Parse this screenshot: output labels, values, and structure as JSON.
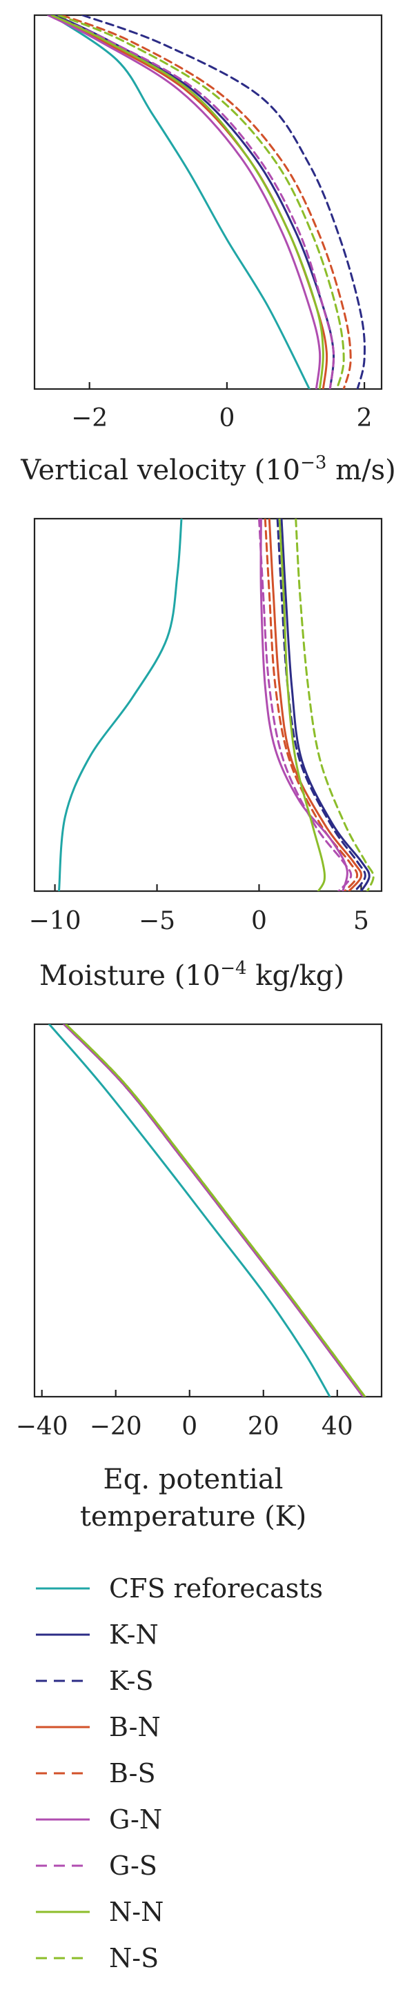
{
  "colors": {
    "CFS": "#20a6a6",
    "KN": "#2c2c86",
    "KS": "#2c2c86",
    "BN": "#d2512a",
    "BS": "#d2512a",
    "GN": "#b04db0",
    "GS": "#b04db0",
    "NN": "#8cbd2a",
    "NS": "#8cbd2a"
  },
  "chart_data": [
    {
      "type": "line",
      "title": "",
      "xlabel": "Vertical velocity (10",
      "xlabel_exp": "−3",
      "xlabel_unit": " m/s)",
      "xlim": [
        -2.8,
        2.25
      ],
      "ylim": [
        0,
        1
      ],
      "xticks": [
        -2,
        0,
        2
      ],
      "xtick_labels": [
        "−2",
        "0",
        "2"
      ],
      "series": [
        {
          "name": "CFS reforecasts",
          "key": "CFS",
          "dash": false,
          "points": [
            [
              -2.55,
              1.0
            ],
            [
              -1.6,
              0.88
            ],
            [
              -1.1,
              0.74
            ],
            [
              -0.55,
              0.58
            ],
            [
              0.0,
              0.4
            ],
            [
              0.6,
              0.22
            ],
            [
              1.2,
              0.0
            ]
          ]
        },
        {
          "name": "K-N",
          "key": "KN",
          "dash": false,
          "points": [
            [
              -2.5,
              1.0
            ],
            [
              -1.7,
              0.93
            ],
            [
              -0.5,
              0.8
            ],
            [
              0.4,
              0.62
            ],
            [
              1.0,
              0.42
            ],
            [
              1.4,
              0.22
            ],
            [
              1.55,
              0.1
            ],
            [
              1.5,
              0.0
            ]
          ]
        },
        {
          "name": "K-S",
          "key": "KS",
          "dash": true,
          "points": [
            [
              -2.1,
              1.0
            ],
            [
              -0.9,
              0.92
            ],
            [
              0.5,
              0.78
            ],
            [
              1.2,
              0.6
            ],
            [
              1.65,
              0.4
            ],
            [
              1.95,
              0.2
            ],
            [
              2.0,
              0.08
            ],
            [
              1.9,
              0.0
            ]
          ]
        },
        {
          "name": "B-N",
          "key": "BN",
          "dash": false,
          "points": [
            [
              -2.55,
              1.0
            ],
            [
              -1.8,
              0.93
            ],
            [
              -0.6,
              0.8
            ],
            [
              0.3,
              0.62
            ],
            [
              0.9,
              0.42
            ],
            [
              1.3,
              0.22
            ],
            [
              1.45,
              0.1
            ],
            [
              1.4,
              0.0
            ]
          ]
        },
        {
          "name": "B-S",
          "key": "BS",
          "dash": true,
          "points": [
            [
              -2.4,
              1.0
            ],
            [
              -1.4,
              0.93
            ],
            [
              -0.1,
              0.79
            ],
            [
              0.8,
              0.61
            ],
            [
              1.35,
              0.41
            ],
            [
              1.7,
              0.21
            ],
            [
              1.8,
              0.08
            ],
            [
              1.7,
              0.0
            ]
          ]
        },
        {
          "name": "G-N",
          "key": "GN",
          "dash": false,
          "points": [
            [
              -2.6,
              1.0
            ],
            [
              -1.85,
              0.93
            ],
            [
              -0.7,
              0.8
            ],
            [
              0.2,
              0.62
            ],
            [
              0.8,
              0.42
            ],
            [
              1.2,
              0.22
            ],
            [
              1.35,
              0.1
            ],
            [
              1.3,
              0.0
            ]
          ]
        },
        {
          "name": "G-S",
          "key": "GS",
          "dash": true,
          "points": [
            [
              -2.55,
              1.0
            ],
            [
              -1.7,
              0.93
            ],
            [
              -0.45,
              0.8
            ],
            [
              0.45,
              0.62
            ],
            [
              1.05,
              0.42
            ],
            [
              1.4,
              0.22
            ],
            [
              1.55,
              0.1
            ],
            [
              1.5,
              0.0
            ]
          ]
        },
        {
          "name": "N-N",
          "key": "NN",
          "dash": false,
          "points": [
            [
              -2.55,
              1.0
            ],
            [
              -1.75,
              0.93
            ],
            [
              -0.55,
              0.8
            ],
            [
              0.3,
              0.62
            ],
            [
              0.9,
              0.42
            ],
            [
              1.3,
              0.22
            ],
            [
              1.4,
              0.1
            ],
            [
              1.35,
              0.0
            ]
          ]
        },
        {
          "name": "N-S",
          "key": "NS",
          "dash": true,
          "points": [
            [
              -2.45,
              1.0
            ],
            [
              -1.5,
              0.93
            ],
            [
              -0.2,
              0.79
            ],
            [
              0.7,
              0.61
            ],
            [
              1.25,
              0.41
            ],
            [
              1.6,
              0.21
            ],
            [
              1.7,
              0.08
            ],
            [
              1.6,
              0.0
            ]
          ]
        }
      ]
    },
    {
      "type": "line",
      "title": "",
      "xlabel": "Moisture (10",
      "xlabel_exp": "−4",
      "xlabel_unit": " kg/kg)",
      "xlim": [
        -11,
        6
      ],
      "ylim": [
        0,
        1
      ],
      "xticks": [
        -10,
        -5,
        0,
        5
      ],
      "xtick_labels": [
        "−10",
        "−5",
        "0",
        "5"
      ],
      "series": [
        {
          "name": "CFS reforecasts",
          "key": "CFS",
          "dash": false,
          "points": [
            [
              -3.8,
              1.0
            ],
            [
              -4.0,
              0.85
            ],
            [
              -4.5,
              0.68
            ],
            [
              -6.2,
              0.52
            ],
            [
              -8.3,
              0.36
            ],
            [
              -9.5,
              0.2
            ],
            [
              -9.8,
              0.0
            ]
          ]
        },
        {
          "name": "K-N",
          "key": "KN",
          "dash": false,
          "points": [
            [
              1.1,
              1.0
            ],
            [
              1.3,
              0.8
            ],
            [
              1.6,
              0.55
            ],
            [
              2.1,
              0.35
            ],
            [
              3.6,
              0.18
            ],
            [
              5.0,
              0.08
            ],
            [
              5.4,
              0.04
            ],
            [
              5.0,
              0.0
            ]
          ]
        },
        {
          "name": "K-S",
          "key": "KS",
          "dash": true,
          "points": [
            [
              0.9,
              1.0
            ],
            [
              1.1,
              0.8
            ],
            [
              1.4,
              0.55
            ],
            [
              2.0,
              0.35
            ],
            [
              3.5,
              0.18
            ],
            [
              4.8,
              0.08
            ],
            [
              5.2,
              0.04
            ],
            [
              4.7,
              0.0
            ]
          ]
        },
        {
          "name": "B-N",
          "key": "BN",
          "dash": false,
          "points": [
            [
              0.5,
              1.0
            ],
            [
              0.7,
              0.8
            ],
            [
              1.0,
              0.55
            ],
            [
              1.6,
              0.35
            ],
            [
              3.2,
              0.18
            ],
            [
              4.6,
              0.08
            ],
            [
              5.0,
              0.04
            ],
            [
              4.4,
              0.0
            ]
          ]
        },
        {
          "name": "B-S",
          "key": "BS",
          "dash": true,
          "points": [
            [
              0.3,
              1.0
            ],
            [
              0.5,
              0.8
            ],
            [
              0.8,
              0.55
            ],
            [
              1.5,
              0.35
            ],
            [
              3.0,
              0.18
            ],
            [
              4.4,
              0.08
            ],
            [
              4.8,
              0.04
            ],
            [
              4.2,
              0.0
            ]
          ]
        },
        {
          "name": "G-N",
          "key": "GN",
          "dash": false,
          "points": [
            [
              0.1,
              1.0
            ],
            [
              0.1,
              0.8
            ],
            [
              0.3,
              0.55
            ],
            [
              0.8,
              0.38
            ],
            [
              2.0,
              0.24
            ],
            [
              3.5,
              0.14
            ],
            [
              4.3,
              0.06
            ],
            [
              4.1,
              0.0
            ]
          ]
        },
        {
          "name": "G-S",
          "key": "GS",
          "dash": true,
          "points": [
            [
              0.0,
              1.0
            ],
            [
              0.2,
              0.8
            ],
            [
              0.5,
              0.55
            ],
            [
              1.2,
              0.35
            ],
            [
              2.7,
              0.18
            ],
            [
              4.1,
              0.08
            ],
            [
              4.5,
              0.04
            ],
            [
              3.9,
              0.0
            ]
          ]
        },
        {
          "name": "N-N",
          "key": "NN",
          "dash": false,
          "points": [
            [
              1.0,
              1.0
            ],
            [
              1.2,
              0.8
            ],
            [
              1.4,
              0.55
            ],
            [
              1.8,
              0.35
            ],
            [
              2.6,
              0.18
            ],
            [
              3.1,
              0.08
            ],
            [
              3.2,
              0.03
            ],
            [
              2.9,
              0.0
            ]
          ]
        },
        {
          "name": "N-S",
          "key": "NS",
          "dash": true,
          "points": [
            [
              1.8,
              1.0
            ],
            [
              2.0,
              0.8
            ],
            [
              2.4,
              0.55
            ],
            [
              3.0,
              0.35
            ],
            [
              4.2,
              0.18
            ],
            [
              5.2,
              0.08
            ],
            [
              5.6,
              0.04
            ],
            [
              5.3,
              0.0
            ]
          ]
        }
      ]
    },
    {
      "type": "line",
      "title": "",
      "xlabel": "Eq. potential",
      "xlabel2": "temperature (K)",
      "xlim": [
        -42,
        52
      ],
      "ylim": [
        0,
        1
      ],
      "xticks": [
        -40,
        -20,
        0,
        20,
        40
      ],
      "xtick_labels": [
        "−40",
        "−20",
        "0",
        "20",
        "40"
      ],
      "series": [
        {
          "name": "CFS reforecasts",
          "key": "CFS",
          "dash": false,
          "points": [
            [
              -38,
              1.0
            ],
            [
              -24,
              0.84
            ],
            [
              -8,
              0.64
            ],
            [
              6,
              0.46
            ],
            [
              20,
              0.28
            ],
            [
              31,
              0.12
            ],
            [
              38,
              0.0
            ]
          ]
        },
        {
          "name": "K-N",
          "key": "KN",
          "dash": false,
          "points": [
            [
              -34,
              1.0
            ],
            [
              -18,
              0.84
            ],
            [
              -2,
              0.64
            ],
            [
              12,
              0.46
            ],
            [
              26,
              0.28
            ],
            [
              38,
              0.12
            ],
            [
              47,
              0.0
            ]
          ]
        },
        {
          "name": "K-S",
          "key": "KS",
          "dash": true,
          "points": [
            [
              -34,
              1.0
            ],
            [
              -18,
              0.84
            ],
            [
              -2,
              0.64
            ],
            [
              12,
              0.46
            ],
            [
              26,
              0.28
            ],
            [
              38,
              0.12
            ],
            [
              47,
              0.0
            ]
          ]
        },
        {
          "name": "B-N",
          "key": "BN",
          "dash": false,
          "points": [
            [
              -34,
              1.0
            ],
            [
              -18,
              0.84
            ],
            [
              -2,
              0.64
            ],
            [
              12,
              0.46
            ],
            [
              26,
              0.28
            ],
            [
              38,
              0.12
            ],
            [
              47,
              0.0
            ]
          ]
        },
        {
          "name": "B-S",
          "key": "BS",
          "dash": true,
          "points": [
            [
              -34,
              1.0
            ],
            [
              -18,
              0.84
            ],
            [
              -2,
              0.64
            ],
            [
              12,
              0.46
            ],
            [
              26,
              0.28
            ],
            [
              38,
              0.12
            ],
            [
              47,
              0.0
            ]
          ]
        },
        {
          "name": "G-N",
          "key": "GN",
          "dash": false,
          "points": [
            [
              -34,
              1.0
            ],
            [
              -18,
              0.84
            ],
            [
              -2,
              0.64
            ],
            [
              12,
              0.46
            ],
            [
              26,
              0.28
            ],
            [
              38,
              0.12
            ],
            [
              47,
              0.0
            ]
          ]
        },
        {
          "name": "G-S",
          "key": "GS",
          "dash": true,
          "points": [
            [
              -34,
              1.0
            ],
            [
              -18,
              0.84
            ],
            [
              -2,
              0.64
            ],
            [
              12,
              0.46
            ],
            [
              26,
              0.28
            ],
            [
              38,
              0.12
            ],
            [
              47,
              0.0
            ]
          ]
        },
        {
          "name": "N-N",
          "key": "NN",
          "dash": false,
          "points": [
            [
              -33.5,
              1.0
            ],
            [
              -17.5,
              0.84
            ],
            [
              -1.5,
              0.64
            ],
            [
              12.5,
              0.46
            ],
            [
              26.5,
              0.28
            ],
            [
              38.5,
              0.12
            ],
            [
              47.5,
              0.0
            ]
          ]
        },
        {
          "name": "N-S",
          "key": "NS",
          "dash": true,
          "points": [
            [
              -33.5,
              1.0
            ],
            [
              -17.5,
              0.84
            ],
            [
              -1.5,
              0.64
            ],
            [
              12.5,
              0.46
            ],
            [
              26.5,
              0.28
            ],
            [
              38.5,
              0.12
            ],
            [
              47.5,
              0.0
            ]
          ]
        }
      ]
    }
  ],
  "legend": {
    "placement": "bottom",
    "items": [
      {
        "label": "CFS reforecasts",
        "key": "CFS",
        "dash": false
      },
      {
        "label": "K-N",
        "key": "KN",
        "dash": false
      },
      {
        "label": "K-S",
        "key": "KS",
        "dash": true
      },
      {
        "label": "B-N",
        "key": "BN",
        "dash": false
      },
      {
        "label": "B-S",
        "key": "BS",
        "dash": true
      },
      {
        "label": "G-N",
        "key": "GN",
        "dash": false
      },
      {
        "label": "G-S",
        "key": "GS",
        "dash": true
      },
      {
        "label": "N-N",
        "key": "NN",
        "dash": false
      },
      {
        "label": "N-S",
        "key": "NS",
        "dash": true
      }
    ]
  }
}
